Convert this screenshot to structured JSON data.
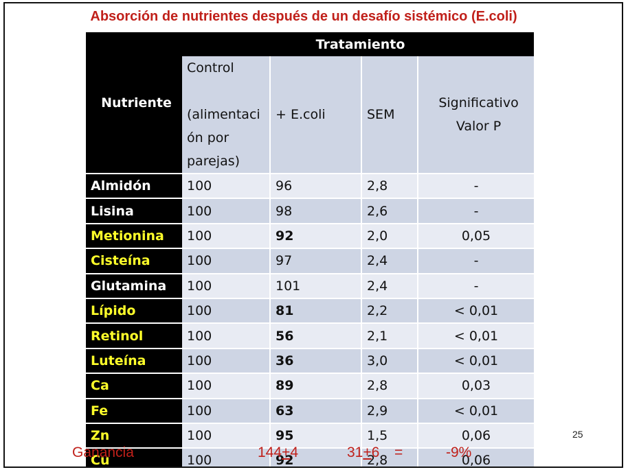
{
  "title": "Absorción de nutrientes después de un desafío sistémico (E.coli)",
  "table": {
    "header_nutrient": "Nutriente",
    "header_treatment": "Tratamiento",
    "col_control": [
      "Control",
      "",
      "(alimentaci",
      "ón por",
      "parejas)"
    ],
    "col_ecoli": "+ E.coli",
    "col_sem": "SEM",
    "col_sig": [
      "Significativo",
      "Valor P"
    ],
    "rows": [
      {
        "name": "Almidón",
        "control": "100",
        "ecoli": "96",
        "sem": "2,8",
        "p": "-"
      },
      {
        "name": "Lisina",
        "control": "100",
        "ecoli": "98",
        "sem": "2,6",
        "p": "-"
      },
      {
        "name": "Metionina",
        "control": "100",
        "ecoli": "92",
        "sem": "2,0",
        "p": "0,05"
      },
      {
        "name": "Cisteína",
        "control": "100",
        "ecoli": "97",
        "sem": "2,4",
        "p": "-"
      },
      {
        "name": "Glutamina",
        "control": "100",
        "ecoli": "101",
        "sem": "2,4",
        "p": "-"
      },
      {
        "name": "Lípido",
        "control": "100",
        "ecoli": "81",
        "sem": "2,2",
        "p": "< 0,01"
      },
      {
        "name": "Retinol",
        "control": "100",
        "ecoli": "56",
        "sem": "2,1",
        "p": "< 0,01"
      },
      {
        "name": "Luteína",
        "control": "100",
        "ecoli": "36",
        "sem": "3,0",
        "p": "< 0,01"
      },
      {
        "name": "Ca",
        "control": "100",
        "ecoli": "89",
        "sem": "2,8",
        "p": "0,03"
      },
      {
        "name": "Fe",
        "control": "100",
        "ecoli": "63",
        "sem": "2,9",
        "p": "< 0,01"
      },
      {
        "name": "Zn",
        "control": "100",
        "ecoli": "95",
        "sem": "1,5",
        "p": "0,06"
      },
      {
        "name": "Cu",
        "control": "100",
        "ecoli": "92",
        "sem": "2,8",
        "p": "0,06"
      }
    ]
  },
  "footer": {
    "label": "Ganancia",
    "value1_a": "144",
    "value1_pm": "+",
    "value1_b": "4",
    "value2_a": "31",
    "value2_pm": "+",
    "value2_b": "6",
    "equals": "=",
    "result": "-9%"
  },
  "page_number": "25",
  "colors": {
    "title_red": "#c0201a",
    "highlight_yellow": "#ffff2a",
    "row_light": "#e8ebf3",
    "row_dark": "#ced5e4"
  }
}
